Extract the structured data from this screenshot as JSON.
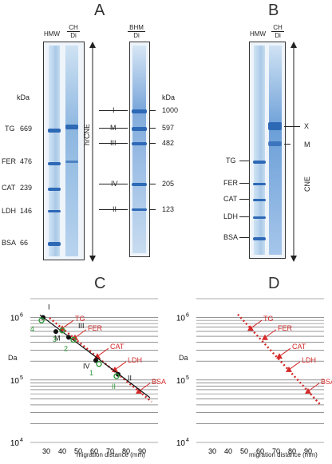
{
  "panels": {
    "A": {
      "letter": "A",
      "lane_hmw": "HMW",
      "lane_chdi_top": "CH",
      "lane_chdi_bottom": "Di",
      "lane_bhm_top": "BHM",
      "lane_bhm_bottom": "Di",
      "kda_left": "kDa",
      "kda_right": "kDa",
      "method": "hrCNE",
      "markers": [
        {
          "name": "TG",
          "kda": "669"
        },
        {
          "name": "FER",
          "kda": "476"
        },
        {
          "name": "CAT",
          "kda": "239"
        },
        {
          "name": "LDH",
          "kda": "146"
        },
        {
          "name": "BSA",
          "kda": "66"
        }
      ],
      "complexes": [
        {
          "name": "I",
          "kda": "1000"
        },
        {
          "name": "M",
          "kda": "597"
        },
        {
          "name": "III",
          "kda": "482"
        },
        {
          "name": "IV",
          "kda": "205"
        },
        {
          "name": "II",
          "kda": "123"
        }
      ]
    },
    "B": {
      "letter": "B",
      "lane_hmw": "HMW",
      "lane_chdi_top": "CH",
      "lane_chdi_bottom": "Di",
      "method": "CNE",
      "markers": [
        "TG",
        "FER",
        "CAT",
        "LDH",
        "BSA"
      ],
      "complexes": [
        "X",
        "M"
      ]
    },
    "C": {
      "letter": "C",
      "ylabel": "Da",
      "xlabel": "migration distance (mm)",
      "y_ticks": [
        "10",
        "10",
        "10"
      ],
      "y_exps": [
        "6",
        "5",
        "4"
      ],
      "x_ticks": [
        "30",
        "40",
        "50",
        "60",
        "70",
        "80",
        "90"
      ],
      "red_labels": [
        "TG",
        "FER",
        "CAT",
        "LDH",
        "BSA"
      ],
      "black_labels": [
        "I",
        "III",
        "M",
        "IV",
        "II"
      ],
      "green_labels": [
        "4",
        "3",
        "2",
        "1",
        "II"
      ]
    },
    "D": {
      "letter": "D",
      "ylabel": "Da",
      "xlabel": "migration distance (mm)",
      "y_ticks": [
        "10",
        "10",
        "10"
      ],
      "y_exps": [
        "6",
        "5",
        "4"
      ],
      "x_ticks": [
        "30",
        "40",
        "50",
        "60",
        "70",
        "80",
        "90"
      ],
      "red_labels": [
        "TG",
        "FER",
        "CAT",
        "LDH",
        "BSA"
      ]
    }
  },
  "chart_data": [
    {
      "type": "scatter",
      "title": "C",
      "xlabel": "migration distance (mm)",
      "ylabel": "Da",
      "xlim": [
        20,
        100
      ],
      "ylim": [
        10000,
        2000000
      ],
      "yscale": "log",
      "series": [
        {
          "name": "TG",
          "x": [
            40
          ],
          "y": [
            669000
          ]
        },
        {
          "name": "FER",
          "x": [
            48
          ],
          "y": [
            476000
          ]
        },
        {
          "name": "CAT",
          "x": [
            62
          ],
          "y": [
            239000
          ]
        },
        {
          "name": "LDH",
          "x": [
            73
          ],
          "y": [
            146000
          ]
        },
        {
          "name": "BSA",
          "x": [
            88
          ],
          "y": [
            66000
          ]
        }
      ]
    },
    {
      "type": "scatter",
      "title": "D",
      "xlabel": "migration distance (mm)",
      "ylabel": "Da",
      "xlim": [
        20,
        100
      ],
      "ylim": [
        10000,
        2000000
      ],
      "yscale": "log",
      "series": [
        {
          "name": "TG",
          "x": [
            54
          ],
          "y": [
            669000
          ]
        },
        {
          "name": "FER",
          "x": [
            63
          ],
          "y": [
            476000
          ]
        },
        {
          "name": "CAT",
          "x": [
            72
          ],
          "y": [
            239000
          ]
        },
        {
          "name": "LDH",
          "x": [
            78
          ],
          "y": [
            146000
          ]
        },
        {
          "name": "BSA",
          "x": [
            90
          ],
          "y": [
            66000
          ]
        }
      ]
    }
  ],
  "colors": {
    "marker_red": "#d42a2a",
    "complex_black": "#111111",
    "green": "#2e9a3a",
    "gel_blue": "#2e69b6"
  }
}
